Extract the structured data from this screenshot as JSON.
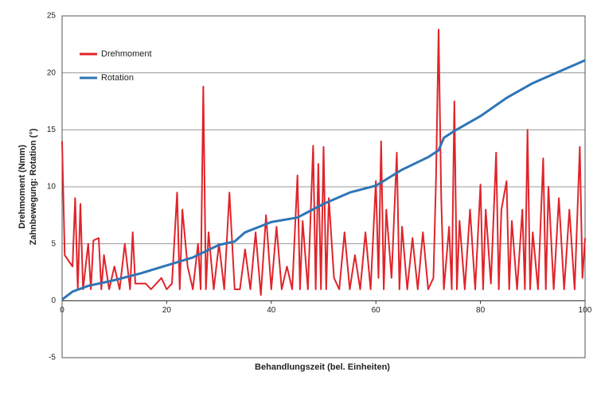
{
  "chart_data": {
    "type": "line",
    "xlabel": "Behandlungszeit (bel. Einheiten)",
    "ylabel": [
      "Drehmoment (Nmm)",
      "Zahnbewegung: Rotation (°)"
    ],
    "xlim": [
      0,
      100
    ],
    "xticks": [
      0,
      20,
      40,
      60,
      80,
      100
    ],
    "ylim": [
      -5,
      25
    ],
    "yticks": [
      -5,
      0,
      5,
      10,
      15,
      20,
      25
    ],
    "grid": true,
    "legend": "upper left",
    "series": [
      {
        "name": "Drehmoment",
        "color": "#e0242a",
        "x": [
          0,
          0.5,
          2,
          2.5,
          3,
          3.5,
          4,
          5,
          5.5,
          6,
          7,
          7.5,
          8,
          9,
          10,
          11,
          12,
          13,
          13.5,
          14,
          16,
          17,
          19,
          20,
          21,
          22,
          22.5,
          23,
          24,
          25,
          26,
          26.5,
          27,
          27.5,
          28,
          29,
          30,
          31,
          32,
          33,
          34,
          35,
          36,
          37,
          38,
          39,
          40,
          41,
          42,
          43,
          44,
          45,
          45.5,
          46,
          47,
          48,
          48.5,
          49,
          49.5,
          50,
          50.5,
          51,
          52,
          53,
          54,
          55,
          56,
          57,
          58,
          59,
          60,
          60.5,
          61,
          61.5,
          62,
          63,
          64,
          64.5,
          65,
          66,
          67,
          68,
          69,
          70,
          71,
          71.5,
          72,
          72.5,
          73,
          74,
          74.5,
          75,
          75.5,
          76,
          77,
          78,
          79,
          80,
          80.5,
          81,
          82,
          83,
          83.5,
          84,
          85,
          85.5,
          86,
          87,
          88,
          88.5,
          89,
          89.5,
          90,
          91,
          92,
          92.5,
          93,
          94,
          95,
          96,
          97,
          98,
          99,
          99.5,
          100
        ],
        "values": [
          14,
          4,
          3,
          9,
          1,
          8.5,
          1,
          5,
          1,
          5.3,
          5.5,
          1,
          4,
          1,
          3,
          1,
          5,
          1,
          6,
          1.5,
          1.5,
          1,
          2,
          1,
          1.5,
          9.5,
          1,
          8,
          3,
          1,
          5,
          1,
          18.8,
          1,
          6,
          1,
          5,
          1,
          9.5,
          1,
          1,
          4.5,
          1,
          6,
          0.5,
          7.5,
          1,
          6.5,
          1,
          3,
          1,
          11,
          1,
          7,
          1,
          13.6,
          1,
          12,
          1,
          13.5,
          1,
          9,
          2,
          1,
          6,
          1,
          4,
          1,
          6,
          1,
          10.5,
          2,
          14,
          1,
          8,
          2,
          13,
          1,
          6.5,
          1,
          5.5,
          1,
          6,
          1,
          2,
          10.8,
          23.8,
          9,
          1,
          6.5,
          1,
          17.5,
          1,
          7,
          1,
          8,
          1,
          10.2,
          1,
          8,
          1.5,
          13,
          1,
          8,
          10.5,
          1,
          7,
          1,
          8,
          1,
          15,
          1,
          6,
          1,
          12.5,
          1,
          10,
          1,
          9,
          1,
          8,
          1,
          13.5,
          2,
          5.5
        ]
      },
      {
        "name": "Rotation",
        "color": "#2e75b6",
        "x": [
          0,
          2,
          5,
          10,
          15,
          20,
          25,
          30,
          33,
          35,
          40,
          45,
          50,
          55,
          60,
          65,
          70,
          72,
          73,
          75,
          80,
          85,
          90,
          95,
          100
        ],
        "values": [
          0.1,
          0.8,
          1.3,
          1.8,
          2.4,
          3.1,
          3.8,
          4.9,
          5.2,
          6,
          6.9,
          7.3,
          8.5,
          9.5,
          10.1,
          11.5,
          12.6,
          13.2,
          14.3,
          14.9,
          16.2,
          17.8,
          19.1,
          20.1,
          21.1
        ]
      }
    ]
  }
}
